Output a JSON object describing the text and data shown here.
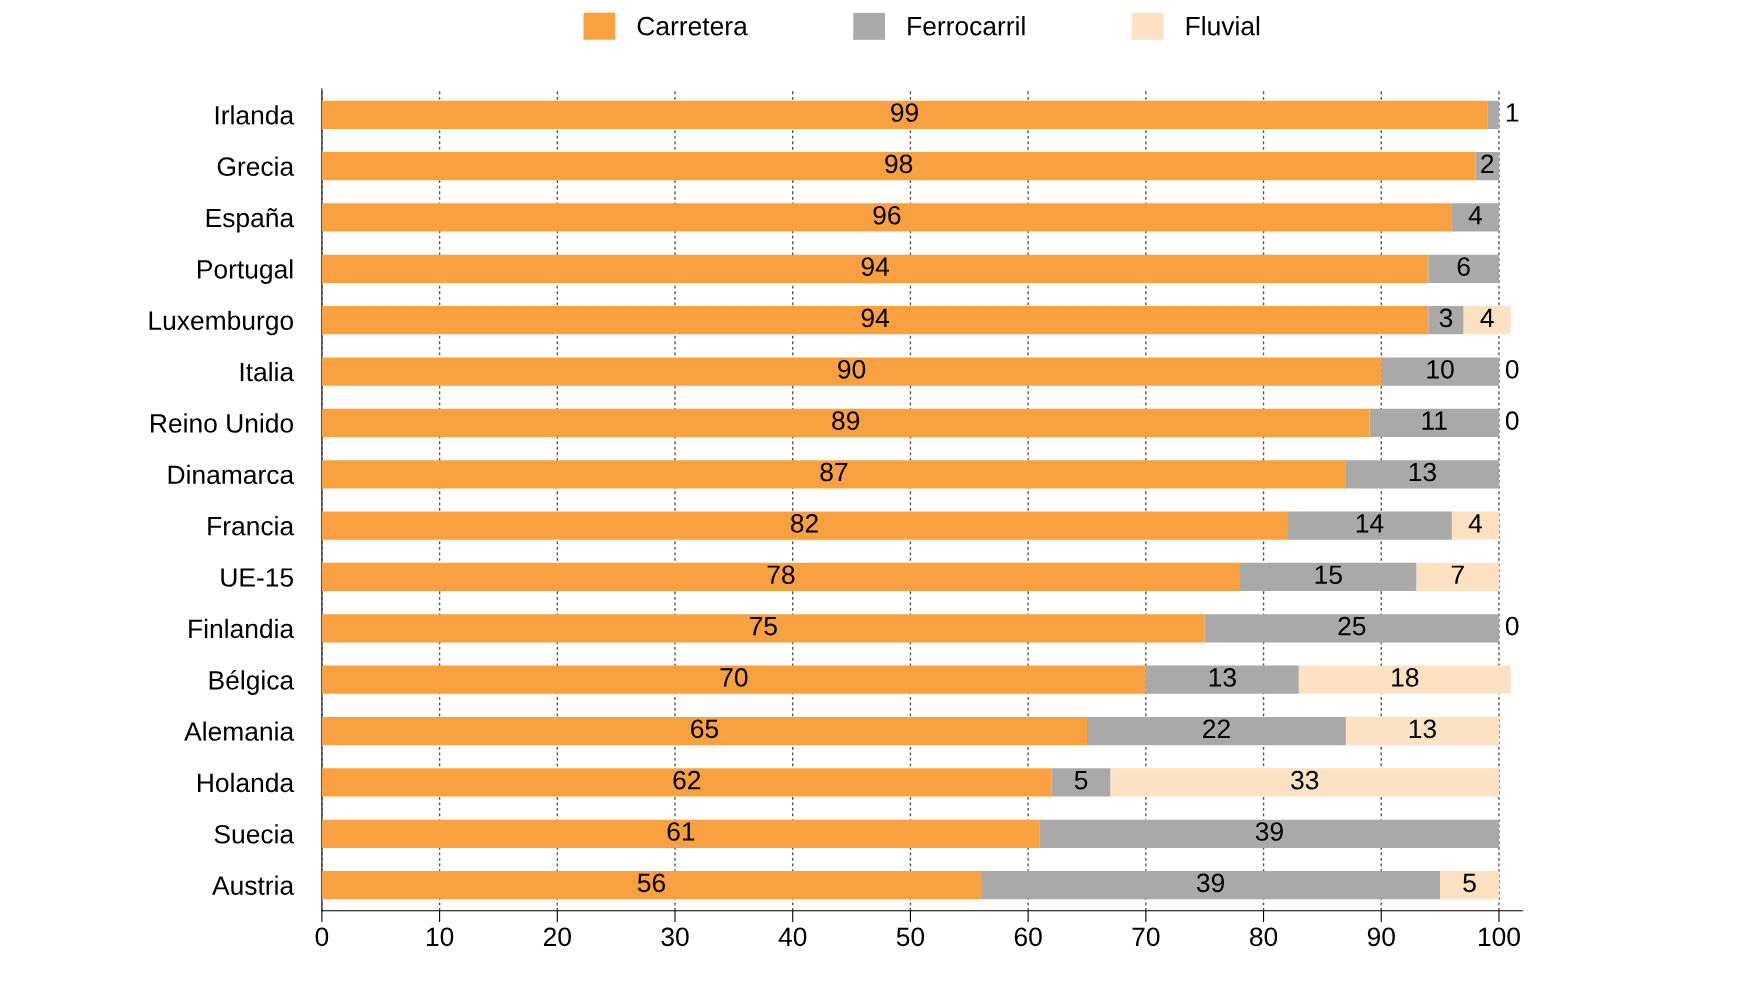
{
  "chart_data": {
    "type": "bar",
    "orientation": "horizontal",
    "stacked": true,
    "categories": [
      "Irlanda",
      "Grecia",
      "España",
      "Portugal",
      "Luxemburgo",
      "Italia",
      "Reino Unido",
      "Dinamarca",
      "Francia",
      "UE-15",
      "Finlandia",
      "Bélgica",
      "Alemania",
      "Holanda",
      "Suecia",
      "Austria"
    ],
    "series": [
      {
        "name": "Carretera",
        "color": "#f9a040",
        "values": [
          99,
          98,
          96,
          94,
          94,
          90,
          89,
          87,
          82,
          78,
          75,
          70,
          65,
          62,
          61,
          56
        ],
        "value_labels": [
          "99",
          "98",
          "96",
          "94",
          "94",
          "90",
          "89",
          "87",
          "82",
          "78",
          "75",
          "70",
          "65",
          "62",
          "61",
          "56"
        ]
      },
      {
        "name": "Ferrocarril",
        "color": "#a9a9a9",
        "values": [
          1,
          2,
          4,
          6,
          3,
          10,
          11,
          13,
          14,
          15,
          25,
          13,
          22,
          5,
          39,
          39
        ],
        "value_labels": [
          "1",
          "2",
          "4",
          "6",
          "3",
          "10",
          "11",
          "13",
          "14",
          "15",
          "25",
          "13",
          "22",
          "5",
          "39",
          "39"
        ]
      },
      {
        "name": "Fluvial",
        "color": "#fde1c3",
        "values": [
          0,
          0,
          0,
          0,
          4,
          0,
          0,
          0,
          4,
          7,
          0,
          18,
          13,
          33,
          0,
          5
        ],
        "value_labels": [
          null,
          null,
          null,
          null,
          "4",
          "0",
          "0",
          null,
          "4",
          "7",
          "0",
          "18",
          "13",
          "33",
          null,
          "5"
        ]
      }
    ],
    "xlim": [
      0,
      102
    ],
    "xticks": [
      0,
      10,
      20,
      30,
      40,
      50,
      60,
      70,
      80,
      90,
      100
    ],
    "grid": "x",
    "legend": "top"
  }
}
